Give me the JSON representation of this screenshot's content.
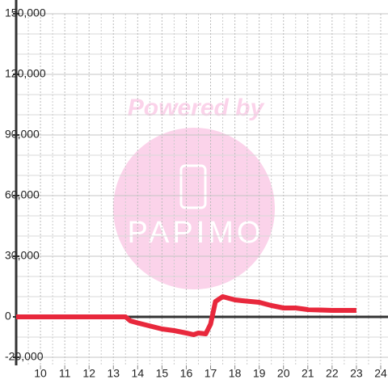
{
  "chart_data": {
    "type": "line",
    "x": [
      9,
      12.5,
      13.5,
      13.7,
      14,
      14.5,
      15,
      15.5,
      16,
      16.3,
      16.5,
      16.8,
      17,
      17.2,
      17.5,
      18,
      18.3,
      19,
      19.5,
      20,
      20.5,
      21,
      22,
      23
    ],
    "series": [
      {
        "color": "#e8283c",
        "values": [
          0,
          0,
          0,
          -2000,
          -3000,
          -4500,
          -6000,
          -6800,
          -8000,
          -8800,
          -8000,
          -8400,
          -3600,
          7600,
          10000,
          8400,
          8000,
          7200,
          5600,
          4400,
          4400,
          3600,
          3200,
          3200
        ]
      }
    ],
    "xlim": [
      9,
      24.3
    ],
    "ylim": [
      -24000,
      150000
    ],
    "xticks": [
      10,
      11,
      12,
      13,
      14,
      15,
      16,
      17,
      18,
      19,
      20,
      21,
      22,
      23,
      24
    ],
    "minor_xticks": [
      9.5,
      10.5,
      11.5,
      12.5,
      13.5,
      14.5,
      15.5,
      16.5,
      17.5,
      18.5,
      19.5,
      20.5,
      21.5,
      22.5,
      23.5
    ],
    "yticks": [
      {
        "value": -20000,
        "label": "-20,000"
      },
      0,
      {
        "value": 30000,
        "label": "30,000"
      },
      {
        "value": 60000,
        "label": "60,000"
      },
      {
        "value": 90000,
        "label": "90,000"
      },
      {
        "value": 120000,
        "label": "120,000"
      },
      {
        "value": 150000,
        "label": "150,000"
      }
    ],
    "minor_yticks": [
      -10000,
      10000,
      20000,
      40000,
      50000,
      70000,
      80000,
      100000,
      110000,
      130000,
      140000
    ],
    "grid": true
  },
  "watermark": {
    "line1": "Powered by",
    "line2": "PAPIMO"
  }
}
